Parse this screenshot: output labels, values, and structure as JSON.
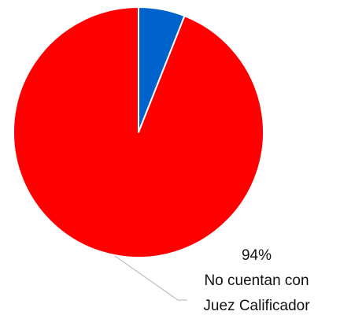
{
  "chart_data": {
    "type": "pie",
    "slices": [
      {
        "label": "",
        "value": 6,
        "color": "#0063cc"
      },
      {
        "label": "No cuentan con Juez Calificador",
        "value": 94,
        "color": "#ff0000"
      }
    ],
    "data_labels": {
      "percent": "94%",
      "line1": "No cuentan con",
      "line2": "Juez Calificador"
    }
  }
}
